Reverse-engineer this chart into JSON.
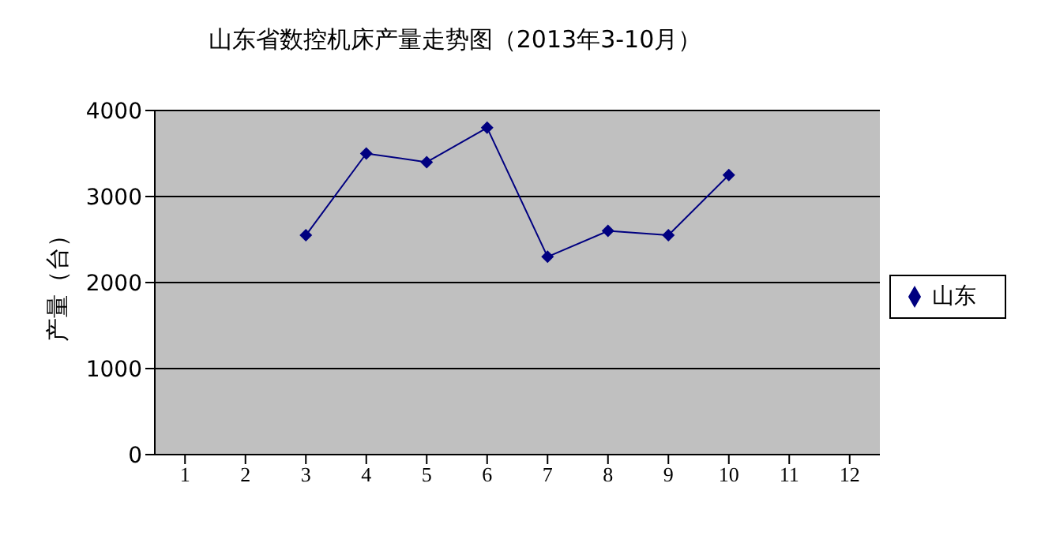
{
  "chart_data": {
    "type": "line",
    "title": "山东省数控机床产量走势图（2013年3-10月）",
    "ylabel": "产量（台）",
    "categories": [
      "1",
      "2",
      "3",
      "4",
      "5",
      "6",
      "7",
      "8",
      "9",
      "10",
      "11",
      "12"
    ],
    "series": [
      {
        "name": "山东",
        "color": "#000080",
        "values": [
          null,
          null,
          2550,
          3500,
          3400,
          3800,
          2300,
          2600,
          2550,
          3250,
          null,
          null
        ]
      }
    ],
    "ylim": [
      0,
      4000
    ],
    "yticks": [
      0,
      1000,
      2000,
      3000,
      4000
    ],
    "grid": "y",
    "legend": "right",
    "marker": "diamond",
    "line_style": "solid"
  }
}
